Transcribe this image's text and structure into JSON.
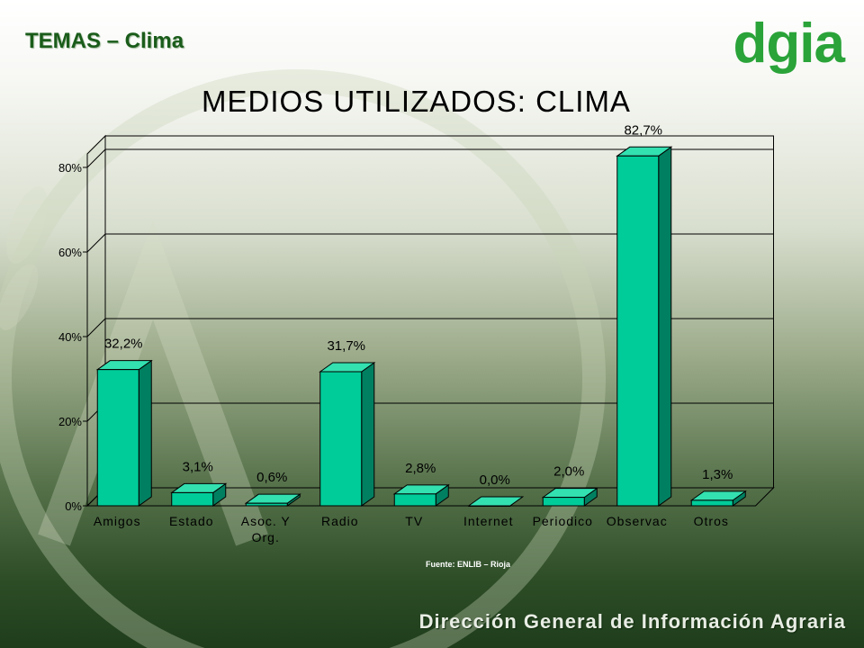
{
  "header": {
    "title": "TEMAS – Clima"
  },
  "logo": {
    "text": "dgia"
  },
  "footer": {
    "text": "Dirección General de Información Agraria"
  },
  "source": "Fuente: ENLIB – Rioja",
  "colors": {
    "bar_front": "#00cc99",
    "bar_side": "#008060",
    "bar_top": "#33e0b0",
    "header": "#1a5c1a",
    "logo": "#2aa339"
  },
  "chart_data": {
    "type": "bar",
    "title": "MEDIOS UTILIZADOS: CLIMA",
    "categories": [
      "Amigos",
      "Estado",
      "Asoc. Y Org.",
      "Radio",
      "TV",
      "Internet",
      "Periodico",
      "Observac",
      "Otros"
    ],
    "values": [
      32.2,
      3.1,
      0.6,
      31.7,
      2.8,
      0.0,
      2.0,
      82.7,
      1.3
    ],
    "data_labels": [
      "32,2%",
      "3,1%",
      "0,6%",
      "31,7%",
      "2,8%",
      "0,0%",
      "2,0%",
      "82,7%",
      "1,3%"
    ],
    "yticks": [
      0,
      20,
      40,
      60,
      80
    ],
    "ytick_labels": [
      "0%",
      "20%",
      "40%",
      "60%",
      "80%"
    ],
    "ylim": [
      0,
      80
    ],
    "grid": true,
    "legend": "none"
  }
}
